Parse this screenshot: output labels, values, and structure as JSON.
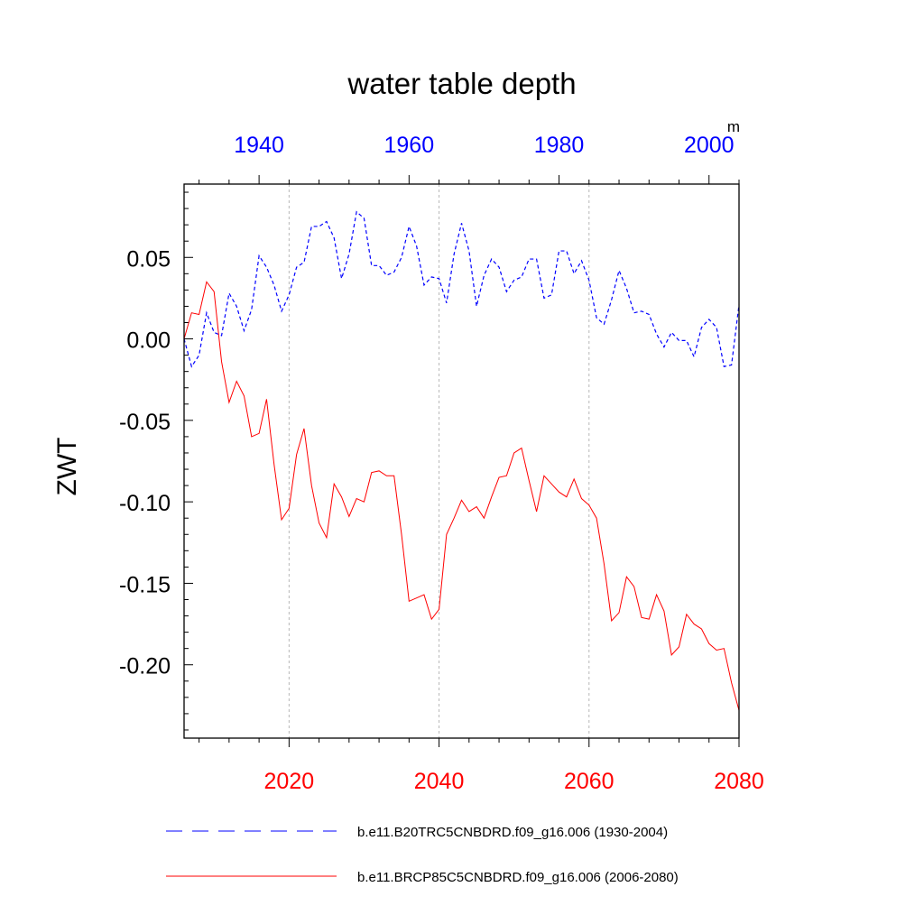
{
  "chart_data": {
    "type": "line",
    "title": "water table depth",
    "ylabel": "ZWT",
    "units": "m",
    "ylim": [
      -0.245,
      0.095
    ],
    "y_ticks": [
      0.05,
      0.0,
      -0.05,
      -0.1,
      -0.15,
      -0.2
    ],
    "y_tick_labels": [
      "0.05",
      "0.00",
      "-0.05",
      "-0.10",
      "-0.15",
      "-0.20"
    ],
    "grid": "dotted vertical lines at bottom-axis major ticks",
    "bottom_axis": {
      "range": [
        2006,
        2080
      ],
      "ticks": [
        2020,
        2040,
        2060,
        2080
      ],
      "tick_labels": [
        "2020",
        "2040",
        "2060",
        "2080"
      ],
      "color": "#ff0000"
    },
    "top_axis": {
      "range": [
        1930,
        2004
      ],
      "ticks": [
        1940,
        1960,
        1980,
        2000
      ],
      "tick_labels": [
        "1940",
        "1960",
        "1980",
        "2000"
      ],
      "color": "#0000ff"
    },
    "legend_position": "bottom",
    "series": [
      {
        "name": "b.e11.B20TRC5CNBDRD.f09_g16.006 (1930-2004)",
        "axis": "top",
        "color": "#0000ff",
        "style": "dashed",
        "x_start": 1930,
        "values": [
          0.0,
          -0.017,
          -0.01,
          0.016,
          0.004,
          0.002,
          0.028,
          0.02,
          0.005,
          0.018,
          0.051,
          0.044,
          0.033,
          0.017,
          0.027,
          0.044,
          0.047,
          0.069,
          0.069,
          0.072,
          0.062,
          0.037,
          0.052,
          0.078,
          0.074,
          0.045,
          0.045,
          0.039,
          0.041,
          0.05,
          0.069,
          0.057,
          0.033,
          0.038,
          0.037,
          0.022,
          0.052,
          0.071,
          0.054,
          0.02,
          0.039,
          0.049,
          0.044,
          0.029,
          0.036,
          0.038,
          0.049,
          0.049,
          0.025,
          0.027,
          0.054,
          0.054,
          0.04,
          0.048,
          0.036,
          0.013,
          0.009,
          0.024,
          0.042,
          0.031,
          0.016,
          0.017,
          0.015,
          0.003,
          -0.005,
          0.004,
          -0.001,
          -0.001,
          -0.011,
          0.007,
          0.012,
          0.007,
          -0.017,
          -0.016,
          0.021
        ]
      },
      {
        "name": "b.e11.BRCP85C5CNBDRD.f09_g16.006 (2006-2080)",
        "axis": "bottom",
        "color": "#ff0000",
        "style": "solid",
        "x_start": 2006,
        "values": [
          0.0,
          0.016,
          0.015,
          0.035,
          0.029,
          -0.014,
          -0.039,
          -0.026,
          -0.035,
          -0.06,
          -0.058,
          -0.037,
          -0.077,
          -0.111,
          -0.104,
          -0.071,
          -0.055,
          -0.09,
          -0.113,
          -0.122,
          -0.089,
          -0.097,
          -0.109,
          -0.098,
          -0.1,
          -0.082,
          -0.081,
          -0.084,
          -0.084,
          -0.12,
          -0.161,
          -0.159,
          -0.157,
          -0.172,
          -0.166,
          -0.12,
          -0.11,
          -0.099,
          -0.106,
          -0.103,
          -0.11,
          -0.097,
          -0.085,
          -0.084,
          -0.07,
          -0.067,
          -0.087,
          -0.106,
          -0.084,
          -0.089,
          -0.094,
          -0.097,
          -0.086,
          -0.098,
          -0.102,
          -0.11,
          -0.138,
          -0.173,
          -0.168,
          -0.146,
          -0.152,
          -0.171,
          -0.172,
          -0.157,
          -0.167,
          -0.194,
          -0.189,
          -0.169,
          -0.175,
          -0.178,
          -0.187,
          -0.191,
          -0.19,
          -0.211,
          -0.228
        ]
      }
    ]
  }
}
